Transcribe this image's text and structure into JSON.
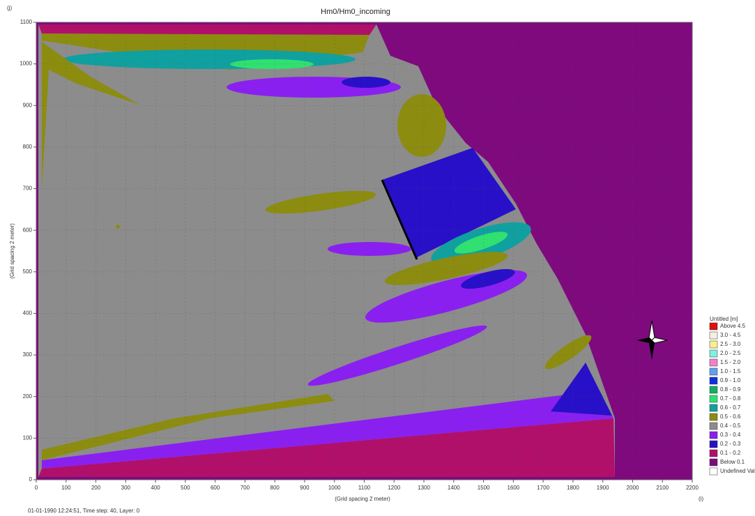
{
  "chart_data": {
    "type": "contour",
    "title": "Hm0/Hm0_incoming",
    "x_label": "(Grid spacing 2 meter)",
    "y_label": "(Grid spacing 2 meter)",
    "x_unit": "(i)",
    "y_unit": "(j)",
    "xlim": [
      0,
      2200
    ],
    "ylim": [
      0,
      1100
    ],
    "xticks": [
      0,
      100,
      200,
      300,
      400,
      500,
      600,
      700,
      800,
      900,
      1000,
      1100,
      1200,
      1300,
      1400,
      1500,
      1600,
      1700,
      1800,
      1900,
      2000,
      2100,
      2200
    ],
    "yticks": [
      0,
      100,
      200,
      300,
      400,
      500,
      600,
      700,
      800,
      900,
      1000,
      1100
    ],
    "grid": true,
    "legend": {
      "title": "Untitled [m]",
      "position": "right",
      "items": [
        {
          "label": "Above 4.5",
          "color": "#e01010"
        },
        {
          "label": "3.0 - 4.5",
          "color": "#f4f0e0"
        },
        {
          "label": "2.5 - 3.0",
          "color": "#f8f090"
        },
        {
          "label": "2.0 - 2.5",
          "color": "#80f0e0"
        },
        {
          "label": "1.5 - 2.0",
          "color": "#f080d0"
        },
        {
          "label": "1.0 - 1.5",
          "color": "#60a0f0"
        },
        {
          "label": "0.9 - 1.0",
          "color": "#1030e0"
        },
        {
          "label": "0.8 - 0.9",
          "color": "#10b060"
        },
        {
          "label": "0.7 - 0.8",
          "color": "#30e070"
        },
        {
          "label": "0.6 - 0.7",
          "color": "#10a0a0"
        },
        {
          "label": "0.5 - 0.6",
          "color": "#8c8c10"
        },
        {
          "label": "0.4 - 0.5",
          "color": "#8c8c8c"
        },
        {
          "label": "0.3 - 0.4",
          "color": "#8a20f0"
        },
        {
          "label": "0.2 - 0.3",
          "color": "#2810c8"
        },
        {
          "label": "0.1 - 0.2",
          "color": "#b0106a"
        },
        {
          "label": "Below 0.1",
          "color": "#7e0a7e"
        },
        {
          "label": "Undefined Value",
          "color": "#ffffff"
        }
      ]
    },
    "footer": "01-01-1990 12:24:51, Time step: 40, Layer: 0"
  }
}
